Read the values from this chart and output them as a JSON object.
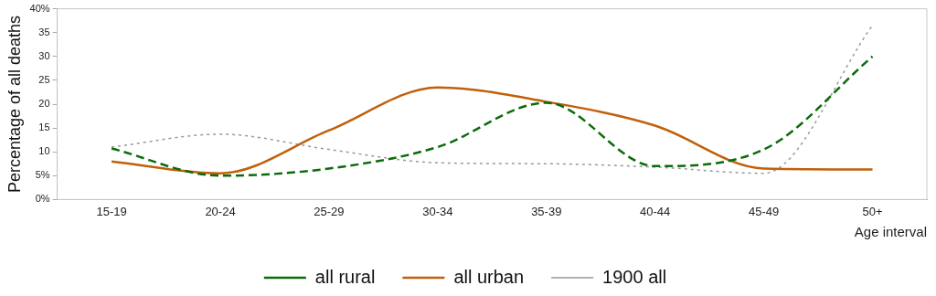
{
  "chart_data": {
    "type": "line",
    "xlabel": "Age interval",
    "ylabel": "Percentage of all deaths",
    "categories": [
      "15-19",
      "20-24",
      "25-29",
      "30-34",
      "35-39",
      "40-44",
      "45-49",
      "50+"
    ],
    "series": [
      {
        "name": "all rural",
        "color": "#0b6b0b",
        "line_style": "dashed",
        "values": [
          10.7,
          5,
          6.5,
          11,
          20.3,
          7,
          10.5,
          30
        ]
      },
      {
        "name": "all urban",
        "color": "#c0600a",
        "line_style": "solid",
        "values": [
          8,
          5.5,
          14.5,
          23.5,
          20.5,
          15.5,
          6.5,
          6.3
        ]
      },
      {
        "name": "1900 all",
        "color": "#999999",
        "line_style": "dotted",
        "values": [
          11,
          13.7,
          10.5,
          7.7,
          7.5,
          6.8,
          5.5,
          36.5
        ]
      }
    ],
    "ylim": [
      0,
      40
    ],
    "yticks": [
      {
        "value": 0,
        "label": "0%"
      },
      {
        "value": 5,
        "label": "5%"
      },
      10,
      15,
      20,
      25,
      30,
      35,
      {
        "value": 40,
        "label": "40%"
      }
    ],
    "grid": false,
    "legend": "bottom",
    "marker": "none"
  }
}
